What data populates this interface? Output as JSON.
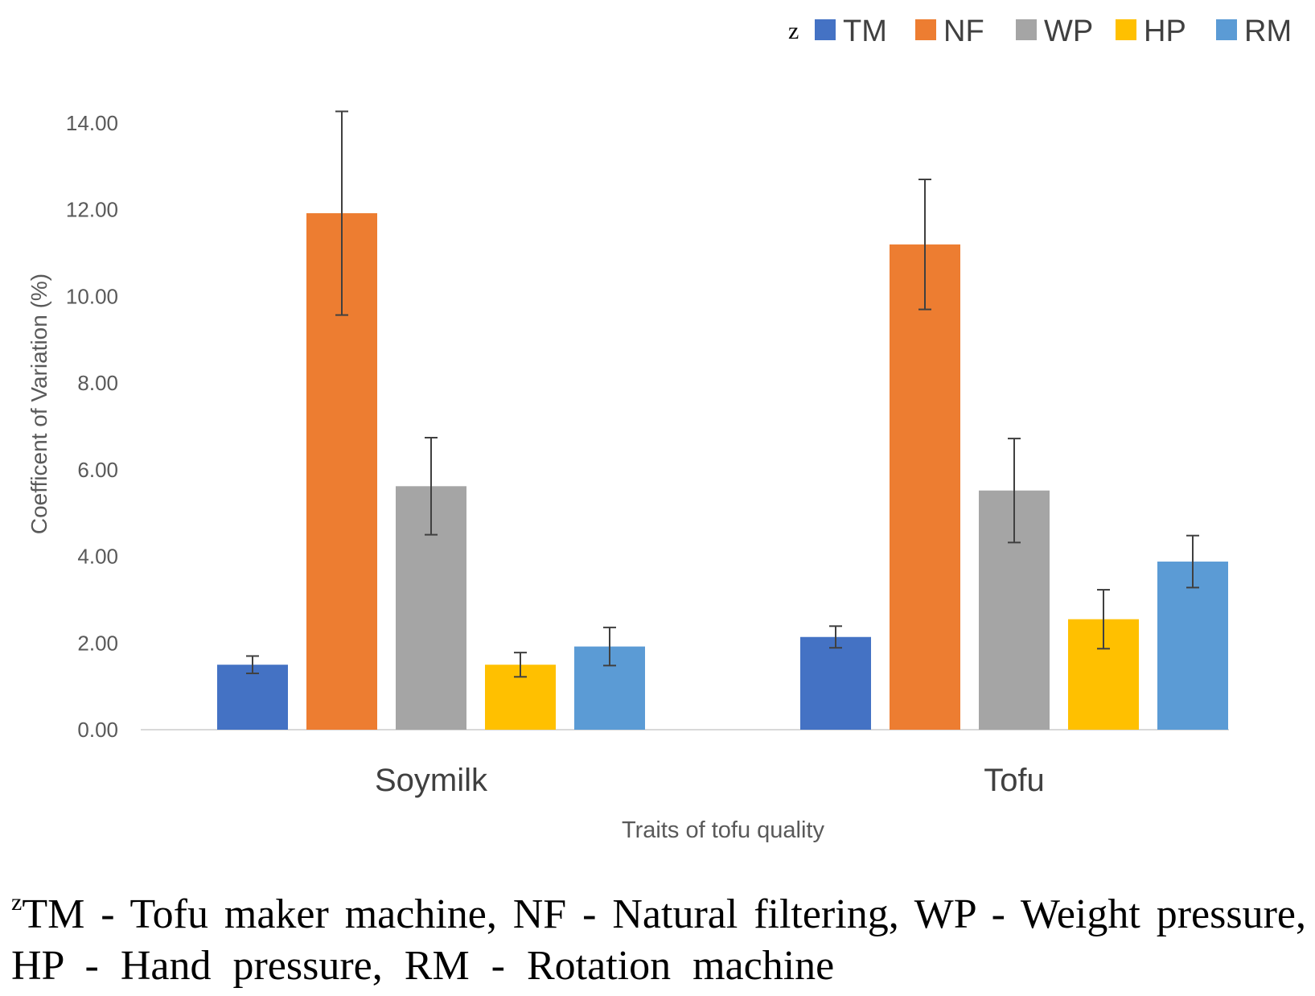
{
  "chart_data": {
    "type": "bar",
    "categories": [
      "Soymilk",
      "Tofu"
    ],
    "series": [
      {
        "name": "TM",
        "color": "#4472C4",
        "values": [
          1.5,
          2.14
        ],
        "error": [
          0.2,
          0.25
        ]
      },
      {
        "name": "NF",
        "color": "#ED7D31",
        "values": [
          11.92,
          11.2
        ],
        "error": [
          2.35,
          1.5
        ]
      },
      {
        "name": "WP",
        "color": "#A5A5A5",
        "values": [
          5.62,
          5.52
        ],
        "error": [
          1.12,
          1.2
        ]
      },
      {
        "name": "HP",
        "color": "#FFC000",
        "values": [
          1.5,
          2.55
        ],
        "error": [
          0.28,
          0.68
        ]
      },
      {
        "name": "RM",
        "color": "#5B9BD5",
        "values": [
          1.92,
          3.88
        ],
        "error": [
          0.44,
          0.6
        ]
      }
    ],
    "ylim": [
      0,
      14
    ],
    "yticks": [
      "0.00",
      "2.00",
      "4.00",
      "6.00",
      "8.00",
      "10.00",
      "12.00",
      "14.00"
    ],
    "ylabel": "Coefficent of Variation (%)",
    "xlabel": "Traits of tofu quality",
    "legend": {
      "position": "top-right",
      "marker": "z"
    },
    "grid": false
  },
  "footnote": {
    "marker": "z",
    "line1": "TM - Tofu maker machine, NF - Natural filtering, WP - Weight pressure,",
    "line2": "HP - Hand pressure, RM - Rotation machine"
  }
}
